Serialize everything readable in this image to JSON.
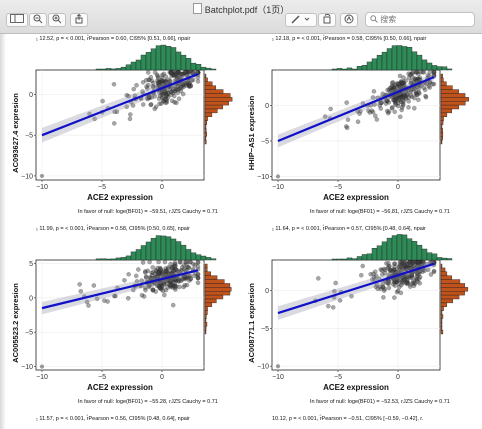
{
  "window": {
    "title": "Batchplot.pdf（1页）",
    "search_placeholder": "搜索",
    "icons": [
      "sidebar-icon",
      "zoom-out-icon",
      "zoom-in-icon",
      "share-icon",
      "pen-icon",
      "chevron-down-icon",
      "rotate-icon",
      "markup-icon",
      "search-icon"
    ]
  },
  "panels": [
    {
      "top_stat": "₁ 12.52, p = < 0.001, r̂Pearson = 0.60, CI95% [0.51, 0.66], npair",
      "bottom_stat": "In favor of null: loge(BF01) = −59.51, rJZS Cauchy = 0.71",
      "ylabel": "AC093627.4 expresion",
      "xlabel": "ACE2 expression",
      "right_hist_color": "#c0531c",
      "top_hist_color": "#2e8b57"
    },
    {
      "top_stat": "₁ 12.18, p = < 0.001, r̂Pearson = 0.58, CI95% [0.50, 0.66], npair",
      "bottom_stat": "In favor of null: loge(BF01) = −56.81, rJZS Cauchy = 0.71",
      "ylabel": "HHIP−AS1 expresion",
      "xlabel": "ACE2 expression",
      "right_hist_color": "#c0531c",
      "top_hist_color": "#2e8b57"
    },
    {
      "top_stat": "₁ 11.99, p = < 0.001, r̂Pearson = 0.58, CI95% [0.50, 0.65], npair",
      "bottom_stat": "In favor of null: loge(BF01) = −55.28, rJZS Cauchy = 0.71",
      "ylabel": "AC005523.2 expresion",
      "xlabel": "ACE2 expression",
      "right_hist_color": "#c0531c",
      "top_hist_color": "#2e8b57"
    },
    {
      "top_stat": "₁ 11.64, p = < 0.001, r̂Pearson = 0.57, CI95% [0.48, 0.64], npair",
      "bottom_stat": "In favor of null: loge(BF01) = −52.53, rJZS Cauchy = 0.71",
      "ylabel": "AC008771.1 expresion",
      "xlabel": "ACE2 expression",
      "right_hist_color": "#c0531c",
      "top_hist_color": "#2e8b57"
    }
  ],
  "footer_stats": [
    "₁ 11.57, p = < 0.001, r̂Pearson = 0.56, CI95% [0.48, 0.64], npair",
    "10.12, p = < 0.001, r̂Pearson = −0.51, CI95% [−0.59, −0.42], r."
  ],
  "chart_data": [
    {
      "type": "scatter",
      "xlabel": "ACE2 expression",
      "ylabel": "AC093627.4 expresion",
      "xticks": [
        "−10",
        "−5",
        "0"
      ],
      "yticks": [
        "−10",
        "−5",
        "0"
      ],
      "xlim": [
        -10.5,
        3.5
      ],
      "ylim": [
        -10.5,
        3
      ],
      "fit": {
        "x": [
          -10,
          3
        ],
        "y": [
          -5,
          2.5
        ]
      }
    },
    {
      "type": "scatter",
      "xlabel": "ACE2 expression",
      "ylabel": "HHIP−AS1 expresion",
      "xticks": [
        "−10",
        "−5",
        "0"
      ],
      "yticks": [
        "−10",
        "−5",
        "0"
      ],
      "xlim": [
        -10.5,
        3.5
      ],
      "ylim": [
        -10.5,
        5
      ],
      "fit": {
        "x": [
          -10,
          3
        ],
        "y": [
          -5,
          4
        ]
      }
    },
    {
      "type": "scatter",
      "xlabel": "ACE2 expression",
      "ylabel": "AC005523.2 expresion",
      "xticks": [
        "−10",
        "−5",
        "0"
      ],
      "yticks": [
        "−10",
        "−5",
        "0",
        "5"
      ],
      "xlim": [
        -10.5,
        3.5
      ],
      "ylim": [
        -10.5,
        5.5
      ],
      "fit": {
        "x": [
          -10,
          3
        ],
        "y": [
          -1.5,
          4
        ]
      }
    },
    {
      "type": "scatter",
      "xlabel": "ACE2 expression",
      "ylabel": "AC008771.1 expresion",
      "xticks": [
        "−10",
        "−5",
        "0"
      ],
      "yticks": [
        "−10",
        "−5",
        "0"
      ],
      "xlim": [
        -10.5,
        3.5
      ],
      "ylim": [
        -10.5,
        4
      ],
      "fit": {
        "x": [
          -10,
          3
        ],
        "y": [
          -3,
          3.5
        ]
      }
    }
  ]
}
